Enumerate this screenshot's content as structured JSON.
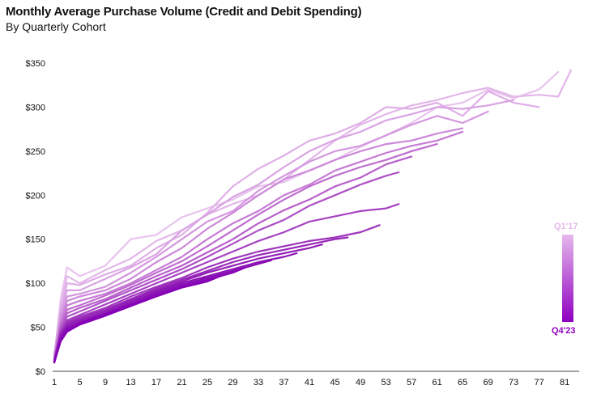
{
  "header": {
    "title": "Monthly Average Purchase Volume (Credit and Debit Spending)",
    "subtitle": "By Quarterly Cohort"
  },
  "legend": {
    "top_label": "Q1'17",
    "bottom_label": "Q4'23",
    "top_color": "#e6b8ec",
    "bottom_color": "#8f00c0"
  },
  "chart_data": {
    "type": "line",
    "title": "Monthly Average Purchase Volume (Credit and Debit Spending)",
    "subtitle": "By Quarterly Cohort",
    "xlabel": "",
    "ylabel": "",
    "x_ticks": [
      1,
      5,
      9,
      13,
      17,
      21,
      25,
      29,
      33,
      37,
      41,
      45,
      49,
      53,
      57,
      61,
      65,
      69,
      73,
      77,
      81
    ],
    "y_ticks": [
      0,
      50,
      100,
      150,
      200,
      250,
      300,
      350
    ],
    "y_tick_labels": [
      "$0",
      "$50",
      "$100",
      "$150",
      "$200",
      "$250",
      "$300",
      "$350"
    ],
    "xlim": [
      1,
      82
    ],
    "ylim": [
      0,
      350
    ],
    "grid": false,
    "legend_placement": "right",
    "series": [
      {
        "color": "#e8c3ee",
        "points": [
          [
            1,
            15
          ],
          [
            2,
            82
          ],
          [
            3,
            118
          ],
          [
            5,
            108
          ],
          [
            9,
            120
          ],
          [
            13,
            150
          ],
          [
            17,
            155
          ],
          [
            21,
            175
          ],
          [
            25,
            185
          ],
          [
            29,
            195
          ],
          [
            33,
            210
          ],
          [
            37,
            215
          ],
          [
            41,
            228
          ],
          [
            45,
            240
          ],
          [
            49,
            255
          ],
          [
            53,
            268
          ],
          [
            57,
            282
          ],
          [
            61,
            300
          ],
          [
            65,
            305
          ],
          [
            69,
            320
          ],
          [
            73,
            310
          ],
          [
            77,
            320
          ],
          [
            80,
            340
          ]
        ]
      },
      {
        "color": "#e3b6ea",
        "points": [
          [
            1,
            18
          ],
          [
            2,
            75
          ],
          [
            3,
            108
          ],
          [
            5,
            100
          ],
          [
            9,
            115
          ],
          [
            13,
            128
          ],
          [
            17,
            148
          ],
          [
            21,
            160
          ],
          [
            25,
            178
          ],
          [
            29,
            190
          ],
          [
            33,
            200
          ],
          [
            37,
            218
          ],
          [
            41,
            240
          ],
          [
            45,
            262
          ],
          [
            49,
            280
          ],
          [
            53,
            292
          ],
          [
            57,
            302
          ],
          [
            61,
            308
          ],
          [
            65,
            316
          ],
          [
            69,
            322
          ],
          [
            73,
            312
          ],
          [
            77,
            314
          ],
          [
            80,
            312
          ],
          [
            82,
            342
          ]
        ]
      },
      {
        "color": "#dfaee7",
        "points": [
          [
            1,
            20
          ],
          [
            2,
            70
          ],
          [
            3,
            100
          ],
          [
            5,
            98
          ],
          [
            9,
            110
          ],
          [
            13,
            120
          ],
          [
            17,
            140
          ],
          [
            21,
            155
          ],
          [
            25,
            180
          ],
          [
            29,
            210
          ],
          [
            33,
            230
          ],
          [
            37,
            245
          ],
          [
            41,
            262
          ],
          [
            45,
            270
          ],
          [
            49,
            282
          ],
          [
            53,
            300
          ],
          [
            57,
            298
          ],
          [
            61,
            305
          ],
          [
            65,
            290
          ],
          [
            69,
            318
          ],
          [
            73,
            305
          ],
          [
            77,
            300
          ]
        ]
      },
      {
        "color": "#d9a3e3",
        "points": [
          [
            1,
            17
          ],
          [
            2,
            68
          ],
          [
            3,
            92
          ],
          [
            5,
            92
          ],
          [
            9,
            105
          ],
          [
            13,
            118
          ],
          [
            17,
            133
          ],
          [
            21,
            160
          ],
          [
            25,
            178
          ],
          [
            29,
            198
          ],
          [
            33,
            212
          ],
          [
            37,
            232
          ],
          [
            41,
            250
          ],
          [
            45,
            263
          ],
          [
            49,
            272
          ],
          [
            53,
            285
          ],
          [
            57,
            292
          ],
          [
            61,
            300
          ],
          [
            65,
            298
          ],
          [
            69,
            302
          ],
          [
            73,
            308
          ]
        ]
      },
      {
        "color": "#d497df",
        "points": [
          [
            1,
            16
          ],
          [
            2,
            62
          ],
          [
            3,
            85
          ],
          [
            5,
            88
          ],
          [
            9,
            96
          ],
          [
            13,
            112
          ],
          [
            17,
            130
          ],
          [
            21,
            150
          ],
          [
            25,
            170
          ],
          [
            29,
            182
          ],
          [
            33,
            205
          ],
          [
            37,
            222
          ],
          [
            41,
            238
          ],
          [
            45,
            250
          ],
          [
            49,
            256
          ],
          [
            53,
            268
          ],
          [
            57,
            280
          ],
          [
            61,
            290
          ],
          [
            65,
            282
          ],
          [
            69,
            295
          ]
        ]
      },
      {
        "color": "#cd89da",
        "points": [
          [
            1,
            15
          ],
          [
            2,
            58
          ],
          [
            3,
            80
          ],
          [
            5,
            85
          ],
          [
            9,
            92
          ],
          [
            13,
            105
          ],
          [
            17,
            124
          ],
          [
            21,
            140
          ],
          [
            25,
            162
          ],
          [
            29,
            180
          ],
          [
            33,
            200
          ],
          [
            37,
            218
          ],
          [
            41,
            228
          ],
          [
            45,
            240
          ],
          [
            49,
            250
          ],
          [
            53,
            258
          ],
          [
            57,
            262
          ],
          [
            61,
            270
          ],
          [
            65,
            276
          ]
        ]
      },
      {
        "color": "#c67bd5",
        "points": [
          [
            1,
            14
          ],
          [
            2,
            55
          ],
          [
            3,
            75
          ],
          [
            5,
            80
          ],
          [
            9,
            88
          ],
          [
            13,
            100
          ],
          [
            17,
            115
          ],
          [
            21,
            130
          ],
          [
            25,
            150
          ],
          [
            29,
            168
          ],
          [
            33,
            182
          ],
          [
            37,
            200
          ],
          [
            41,
            212
          ],
          [
            45,
            228
          ],
          [
            49,
            238
          ],
          [
            53,
            248
          ],
          [
            57,
            256
          ],
          [
            61,
            262
          ],
          [
            65,
            272
          ]
        ]
      },
      {
        "color": "#bf6dd0",
        "points": [
          [
            1,
            14
          ],
          [
            2,
            52
          ],
          [
            3,
            70
          ],
          [
            5,
            75
          ],
          [
            9,
            86
          ],
          [
            13,
            98
          ],
          [
            17,
            112
          ],
          [
            21,
            125
          ],
          [
            25,
            142
          ],
          [
            29,
            160
          ],
          [
            33,
            178
          ],
          [
            37,
            195
          ],
          [
            41,
            210
          ],
          [
            45,
            222
          ],
          [
            49,
            232
          ],
          [
            53,
            240
          ],
          [
            57,
            250
          ],
          [
            61,
            258
          ]
        ]
      },
      {
        "color": "#b75fcb",
        "points": [
          [
            1,
            13
          ],
          [
            2,
            50
          ],
          [
            3,
            66
          ],
          [
            5,
            72
          ],
          [
            9,
            82
          ],
          [
            13,
            95
          ],
          [
            17,
            108
          ],
          [
            21,
            120
          ],
          [
            25,
            135
          ],
          [
            29,
            150
          ],
          [
            33,
            168
          ],
          [
            37,
            183
          ],
          [
            41,
            195
          ],
          [
            45,
            210
          ],
          [
            49,
            220
          ],
          [
            53,
            235
          ],
          [
            57,
            244
          ]
        ]
      },
      {
        "color": "#ae50c6",
        "points": [
          [
            1,
            13
          ],
          [
            2,
            48
          ],
          [
            3,
            62
          ],
          [
            5,
            68
          ],
          [
            9,
            80
          ],
          [
            13,
            92
          ],
          [
            17,
            104
          ],
          [
            21,
            116
          ],
          [
            25,
            130
          ],
          [
            29,
            145
          ],
          [
            33,
            160
          ],
          [
            37,
            172
          ],
          [
            41,
            188
          ],
          [
            45,
            200
          ],
          [
            49,
            212
          ],
          [
            53,
            222
          ],
          [
            55,
            226
          ]
        ]
      },
      {
        "color": "#a642c1",
        "points": [
          [
            1,
            12
          ],
          [
            2,
            45
          ],
          [
            3,
            58
          ],
          [
            5,
            64
          ],
          [
            9,
            76
          ],
          [
            13,
            88
          ],
          [
            17,
            100
          ],
          [
            21,
            112
          ],
          [
            25,
            124
          ],
          [
            29,
            136
          ],
          [
            33,
            148
          ],
          [
            37,
            158
          ],
          [
            41,
            170
          ],
          [
            45,
            176
          ],
          [
            49,
            182
          ],
          [
            53,
            185
          ],
          [
            55,
            190
          ]
        ]
      },
      {
        "color": "#9e35bc",
        "points": [
          [
            1,
            12
          ],
          [
            2,
            44
          ],
          [
            3,
            56
          ],
          [
            5,
            62
          ],
          [
            9,
            72
          ],
          [
            13,
            85
          ],
          [
            17,
            96
          ],
          [
            21,
            106
          ],
          [
            25,
            118
          ],
          [
            29,
            128
          ],
          [
            33,
            136
          ],
          [
            37,
            142
          ],
          [
            41,
            148
          ],
          [
            45,
            152
          ],
          [
            49,
            158
          ],
          [
            52,
            166
          ]
        ]
      },
      {
        "color": "#9728b8",
        "points": [
          [
            1,
            11
          ],
          [
            2,
            42
          ],
          [
            3,
            54
          ],
          [
            5,
            60
          ],
          [
            9,
            70
          ],
          [
            13,
            82
          ],
          [
            17,
            94
          ],
          [
            21,
            104
          ],
          [
            25,
            114
          ],
          [
            29,
            124
          ],
          [
            33,
            132
          ],
          [
            37,
            138
          ],
          [
            41,
            144
          ],
          [
            45,
            150
          ],
          [
            47,
            152
          ]
        ]
      },
      {
        "color": "#911db6",
        "points": [
          [
            1,
            11
          ],
          [
            2,
            40
          ],
          [
            3,
            52
          ],
          [
            5,
            58
          ],
          [
            9,
            68
          ],
          [
            13,
            80
          ],
          [
            17,
            92
          ],
          [
            21,
            102
          ],
          [
            25,
            112
          ],
          [
            29,
            120
          ],
          [
            33,
            128
          ],
          [
            37,
            134
          ],
          [
            41,
            140
          ],
          [
            43,
            144
          ]
        ]
      },
      {
        "color": "#8c14b5",
        "points": [
          [
            1,
            10
          ],
          [
            2,
            38
          ],
          [
            3,
            50
          ],
          [
            5,
            56
          ],
          [
            9,
            66
          ],
          [
            13,
            78
          ],
          [
            17,
            90
          ],
          [
            21,
            100
          ],
          [
            25,
            108
          ],
          [
            29,
            116
          ],
          [
            33,
            124
          ],
          [
            37,
            130
          ],
          [
            39,
            134
          ]
        ]
      },
      {
        "color": "#880cb4",
        "points": [
          [
            1,
            10
          ],
          [
            2,
            36
          ],
          [
            3,
            48
          ],
          [
            5,
            55
          ],
          [
            9,
            65
          ],
          [
            13,
            76
          ],
          [
            17,
            88
          ],
          [
            21,
            98
          ],
          [
            25,
            106
          ],
          [
            29,
            114
          ],
          [
            33,
            122
          ],
          [
            35,
            126
          ]
        ]
      },
      {
        "color": "#8606b5",
        "points": [
          [
            1,
            10
          ],
          [
            2,
            35
          ],
          [
            3,
            46
          ],
          [
            5,
            54
          ],
          [
            9,
            64
          ],
          [
            13,
            75
          ],
          [
            17,
            86
          ],
          [
            21,
            96
          ],
          [
            25,
            104
          ],
          [
            29,
            112
          ],
          [
            31,
            118
          ]
        ]
      },
      {
        "color": "#8500b8",
        "points": [
          [
            1,
            10
          ],
          [
            2,
            34
          ],
          [
            3,
            45
          ],
          [
            5,
            53
          ],
          [
            9,
            63
          ],
          [
            13,
            74
          ],
          [
            17,
            85
          ],
          [
            21,
            95
          ],
          [
            25,
            102
          ],
          [
            27,
            108
          ]
        ]
      }
    ]
  }
}
